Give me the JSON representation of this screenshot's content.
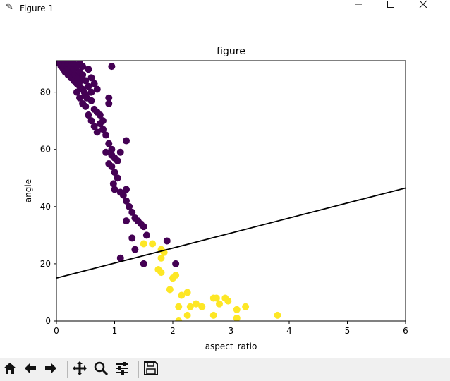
{
  "window": {
    "title": "Figure 1"
  },
  "chart_data": {
    "type": "scatter",
    "title": "figure",
    "xlabel": "aspect_ratio",
    "ylabel": "angle",
    "xlim": [
      0,
      6
    ],
    "ylim": [
      0,
      91
    ],
    "xticks": [
      0,
      1,
      2,
      3,
      4,
      5,
      6
    ],
    "yticks": [
      0,
      20,
      40,
      60,
      80
    ],
    "grid": false,
    "legend": "none",
    "series": [
      {
        "color": "#440154",
        "points": [
          [
            0.05,
            90
          ],
          [
            0.08,
            89
          ],
          [
            0.1,
            90
          ],
          [
            0.12,
            88
          ],
          [
            0.15,
            87
          ],
          [
            0.18,
            89
          ],
          [
            0.2,
            86
          ],
          [
            0.22,
            88
          ],
          [
            0.25,
            85
          ],
          [
            0.28,
            87
          ],
          [
            0.3,
            84
          ],
          [
            0.32,
            86
          ],
          [
            0.35,
            83
          ],
          [
            0.38,
            85
          ],
          [
            0.4,
            82
          ],
          [
            0.42,
            84
          ],
          [
            0.45,
            81
          ],
          [
            0.48,
            80
          ],
          [
            0.5,
            79
          ],
          [
            0.52,
            78
          ],
          [
            0.15,
            90
          ],
          [
            0.2,
            90
          ],
          [
            0.25,
            89
          ],
          [
            0.3,
            88
          ],
          [
            0.35,
            89
          ],
          [
            0.4,
            87
          ],
          [
            0.45,
            86
          ],
          [
            0.5,
            84
          ],
          [
            0.55,
            82
          ],
          [
            0.6,
            80
          ],
          [
            0.3,
            90
          ],
          [
            0.4,
            90
          ],
          [
            0.45,
            89
          ],
          [
            0.55,
            88
          ],
          [
            0.6,
            85
          ],
          [
            0.65,
            83
          ],
          [
            0.7,
            81
          ],
          [
            0.35,
            80
          ],
          [
            0.4,
            78
          ],
          [
            0.45,
            76
          ],
          [
            0.5,
            75
          ],
          [
            0.55,
            72
          ],
          [
            0.6,
            70
          ],
          [
            0.65,
            68
          ],
          [
            0.7,
            66
          ],
          [
            0.75,
            69
          ],
          [
            0.8,
            67
          ],
          [
            0.85,
            65
          ],
          [
            0.9,
            62
          ],
          [
            0.95,
            60
          ],
          [
            0.6,
            77
          ],
          [
            0.65,
            74
          ],
          [
            0.7,
            73
          ],
          [
            0.75,
            72
          ],
          [
            0.8,
            70
          ],
          [
            0.9,
            76
          ],
          [
            0.95,
            58
          ],
          [
            1.0,
            57
          ],
          [
            1.05,
            56
          ],
          [
            1.1,
            59
          ],
          [
            0.85,
            59
          ],
          [
            0.9,
            55
          ],
          [
            0.95,
            54
          ],
          [
            1.0,
            52
          ],
          [
            1.05,
            50
          ],
          [
            0.98,
            48
          ],
          [
            1.0,
            46
          ],
          [
            1.1,
            45
          ],
          [
            1.15,
            44
          ],
          [
            1.2,
            46
          ],
          [
            1.2,
            42
          ],
          [
            1.25,
            40
          ],
          [
            1.3,
            38
          ],
          [
            1.35,
            36
          ],
          [
            1.4,
            35
          ],
          [
            1.45,
            34
          ],
          [
            1.5,
            33
          ],
          [
            1.55,
            30
          ],
          [
            1.2,
            35
          ],
          [
            1.3,
            29
          ],
          [
            1.35,
            25
          ],
          [
            1.1,
            22
          ],
          [
            1.5,
            20
          ],
          [
            1.9,
            28
          ],
          [
            2.05,
            20
          ],
          [
            1.2,
            63
          ],
          [
            0.95,
            89
          ],
          [
            0.9,
            78
          ]
        ]
      },
      {
        "color": "#fde725",
        "points": [
          [
            1.5,
            27
          ],
          [
            1.65,
            27
          ],
          [
            1.8,
            25
          ],
          [
            1.85,
            24
          ],
          [
            1.8,
            22
          ],
          [
            1.75,
            18
          ],
          [
            1.8,
            17
          ],
          [
            1.95,
            11
          ],
          [
            2.0,
            15
          ],
          [
            2.05,
            16
          ],
          [
            2.15,
            9
          ],
          [
            2.25,
            10
          ],
          [
            2.3,
            5
          ],
          [
            2.4,
            6
          ],
          [
            2.5,
            5
          ],
          [
            2.1,
            5
          ],
          [
            2.25,
            2
          ],
          [
            2.1,
            0
          ],
          [
            2.7,
            8
          ],
          [
            2.75,
            8
          ],
          [
            2.8,
            6
          ],
          [
            2.9,
            8
          ],
          [
            2.95,
            7
          ],
          [
            2.7,
            2
          ],
          [
            3.1,
            4
          ],
          [
            3.25,
            5
          ],
          [
            3.1,
            1
          ],
          [
            3.8,
            2
          ]
        ]
      }
    ],
    "line": {
      "color": "#000000",
      "points": [
        [
          0,
          15
        ],
        [
          6,
          46.5
        ]
      ]
    }
  }
}
